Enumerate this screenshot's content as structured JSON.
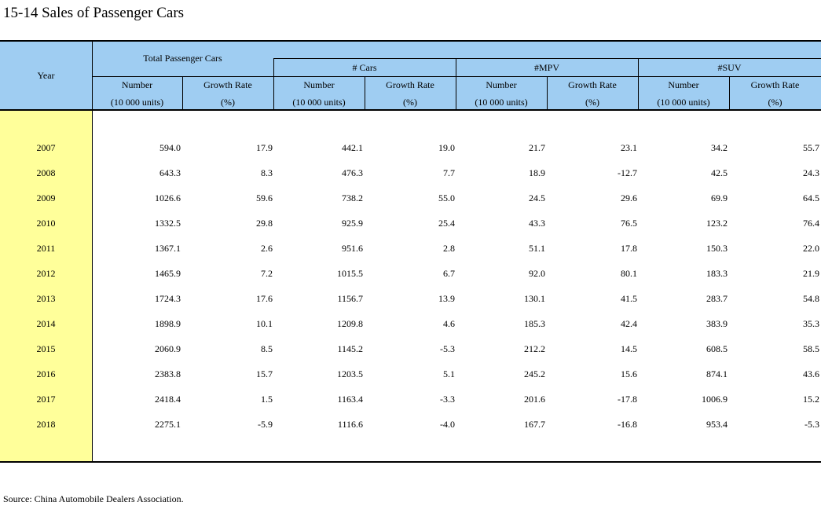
{
  "title": "15-14  Sales of Passenger Cars",
  "header": {
    "year": "Year",
    "groups": [
      "Total Passenger Cars",
      "# Cars",
      "#MPV",
      "#SUV"
    ],
    "sub_number": "Number",
    "sub_number_unit": "(10 000 units)",
    "sub_growth": "Growth Rate",
    "sub_growth_unit": "(%)"
  },
  "rows": [
    {
      "year": "2007",
      "v": [
        "594.0",
        "17.9",
        "442.1",
        "19.0",
        "21.7",
        "23.1",
        "34.2",
        "55.7"
      ]
    },
    {
      "year": "2008",
      "v": [
        "643.3",
        "8.3",
        "476.3",
        "7.7",
        "18.9",
        "-12.7",
        "42.5",
        "24.3"
      ]
    },
    {
      "year": "2009",
      "v": [
        "1026.6",
        "59.6",
        "738.2",
        "55.0",
        "24.5",
        "29.6",
        "69.9",
        "64.5"
      ]
    },
    {
      "year": "2010",
      "v": [
        "1332.5",
        "29.8",
        "925.9",
        "25.4",
        "43.3",
        "76.5",
        "123.2",
        "76.4"
      ]
    },
    {
      "year": "2011",
      "v": [
        "1367.1",
        "2.6",
        "951.6",
        "2.8",
        "51.1",
        "17.8",
        "150.3",
        "22.0"
      ]
    },
    {
      "year": "2012",
      "v": [
        "1465.9",
        "7.2",
        "1015.5",
        "6.7",
        "92.0",
        "80.1",
        "183.3",
        "21.9"
      ]
    },
    {
      "year": "2013",
      "v": [
        "1724.3",
        "17.6",
        "1156.7",
        "13.9",
        "130.1",
        "41.5",
        "283.7",
        "54.8"
      ]
    },
    {
      "year": "2014",
      "v": [
        "1898.9",
        "10.1",
        "1209.8",
        "4.6",
        "185.3",
        "42.4",
        "383.9",
        "35.3"
      ]
    },
    {
      "year": "2015",
      "v": [
        "2060.9",
        "8.5",
        "1145.2",
        "-5.3",
        "212.2",
        "14.5",
        "608.5",
        "58.5"
      ]
    },
    {
      "year": "2016",
      "v": [
        "2383.8",
        "15.7",
        "1203.5",
        "5.1",
        "245.2",
        "15.6",
        "874.1",
        "43.6"
      ]
    },
    {
      "year": "2017",
      "v": [
        "2418.4",
        "1.5",
        "1163.4",
        "-3.3",
        "201.6",
        "-17.8",
        "1006.9",
        "15.2"
      ]
    },
    {
      "year": "2018",
      "v": [
        "2275.1",
        "-5.9",
        "1116.6",
        "-4.0",
        "167.7",
        "-16.8",
        "953.4",
        "-5.3"
      ]
    }
  ],
  "source": "Source: China Automobile Dealers Association.",
  "colors": {
    "header_bg": "#9fcdf2",
    "year_bg": "#ffff9a"
  }
}
